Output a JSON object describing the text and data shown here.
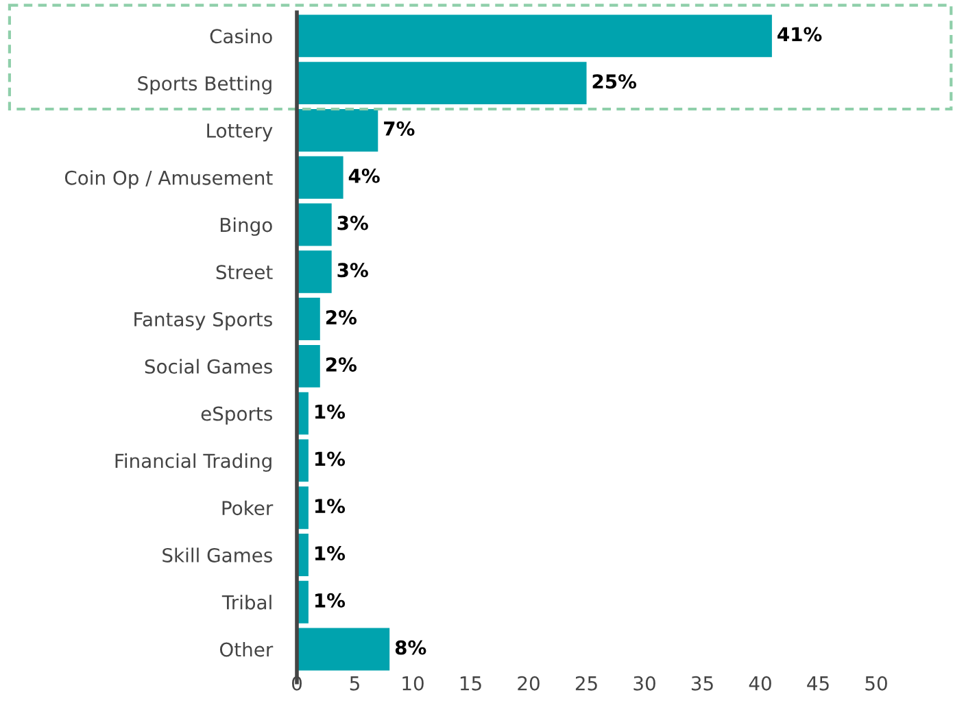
{
  "chart_data": {
    "type": "bar",
    "orientation": "horizontal",
    "categories": [
      "Casino",
      "Sports Betting",
      "Lottery",
      "Coin Op / Amusement",
      "Bingo",
      "Street",
      "Fantasy Sports",
      "Social Games",
      "eSports",
      "Financial Trading",
      "Poker",
      "Skill Games",
      "Tribal",
      "Other"
    ],
    "values": [
      41,
      25,
      7,
      4,
      3,
      3,
      2,
      2,
      1,
      1,
      1,
      1,
      1,
      8
    ],
    "value_labels": [
      "41%",
      "25%",
      "7%",
      "4%",
      "3%",
      "3%",
      "2%",
      "2%",
      "1%",
      "1%",
      "1%",
      "1%",
      "1%",
      "8%"
    ],
    "color": "#00a3ae",
    "xlim": [
      0,
      50
    ],
    "xticks": [
      0,
      5,
      10,
      15,
      20,
      25,
      30,
      35,
      40,
      45,
      50
    ],
    "grid": false,
    "legend": false
  }
}
